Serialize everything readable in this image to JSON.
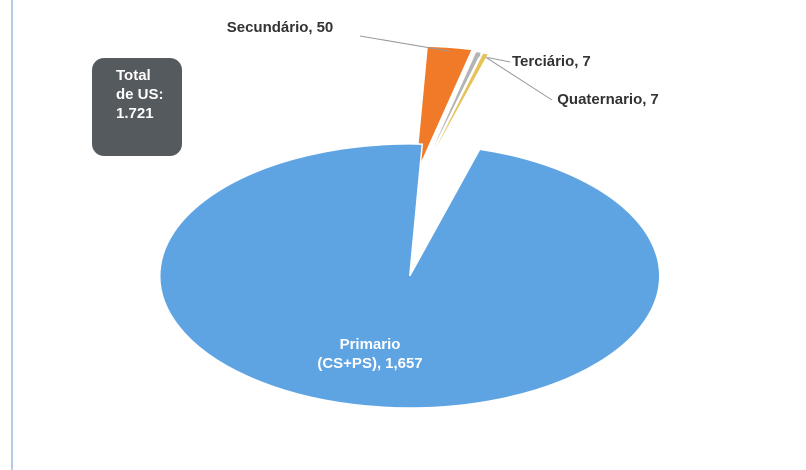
{
  "chart_data": {
    "type": "pie",
    "categories": [
      "Secundário,",
      "Terciário,",
      "Quaternario,",
      "Primario (CS+PS),"
    ],
    "values": [
      50,
      7,
      7,
      1657
    ],
    "value_labels": [
      "50",
      "7",
      "7",
      "1,657"
    ],
    "colors": [
      "#f07a28",
      "#b4b4b4",
      "#e6c25a",
      "#5ea3e2"
    ],
    "annotation": "Total de US: 1.721"
  }
}
